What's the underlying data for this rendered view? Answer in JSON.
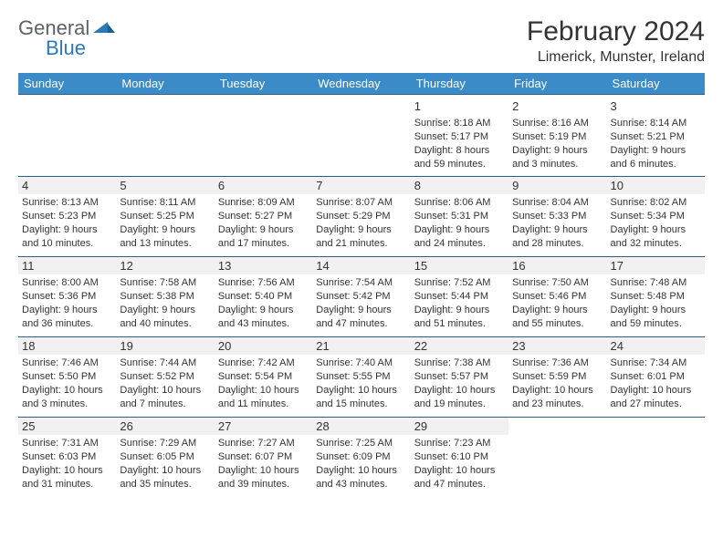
{
  "brand": {
    "part1": "General",
    "part2": "Blue"
  },
  "title": "February 2024",
  "location": "Limerick, Munster, Ireland",
  "colors": {
    "header_bar": "#3b8bc8",
    "cell_border": "#2f5d86",
    "daynum_bg": "#f1f1f1",
    "text": "#333333",
    "logo_gray": "#5b6268",
    "logo_blue": "#2a7ab8"
  },
  "dow": [
    "Sunday",
    "Monday",
    "Tuesday",
    "Wednesday",
    "Thursday",
    "Friday",
    "Saturday"
  ],
  "weeks": [
    [
      null,
      null,
      null,
      null,
      {
        "n": "1",
        "sr": "Sunrise: 8:18 AM",
        "ss": "Sunset: 5:17 PM",
        "dl1": "Daylight: 8 hours",
        "dl2": "and 59 minutes.",
        "shade": false
      },
      {
        "n": "2",
        "sr": "Sunrise: 8:16 AM",
        "ss": "Sunset: 5:19 PM",
        "dl1": "Daylight: 9 hours",
        "dl2": "and 3 minutes.",
        "shade": false
      },
      {
        "n": "3",
        "sr": "Sunrise: 8:14 AM",
        "ss": "Sunset: 5:21 PM",
        "dl1": "Daylight: 9 hours",
        "dl2": "and 6 minutes.",
        "shade": false
      }
    ],
    [
      {
        "n": "4",
        "sr": "Sunrise: 8:13 AM",
        "ss": "Sunset: 5:23 PM",
        "dl1": "Daylight: 9 hours",
        "dl2": "and 10 minutes.",
        "shade": true
      },
      {
        "n": "5",
        "sr": "Sunrise: 8:11 AM",
        "ss": "Sunset: 5:25 PM",
        "dl1": "Daylight: 9 hours",
        "dl2": "and 13 minutes.",
        "shade": true
      },
      {
        "n": "6",
        "sr": "Sunrise: 8:09 AM",
        "ss": "Sunset: 5:27 PM",
        "dl1": "Daylight: 9 hours",
        "dl2": "and 17 minutes.",
        "shade": true
      },
      {
        "n": "7",
        "sr": "Sunrise: 8:07 AM",
        "ss": "Sunset: 5:29 PM",
        "dl1": "Daylight: 9 hours",
        "dl2": "and 21 minutes.",
        "shade": true
      },
      {
        "n": "8",
        "sr": "Sunrise: 8:06 AM",
        "ss": "Sunset: 5:31 PM",
        "dl1": "Daylight: 9 hours",
        "dl2": "and 24 minutes.",
        "shade": true
      },
      {
        "n": "9",
        "sr": "Sunrise: 8:04 AM",
        "ss": "Sunset: 5:33 PM",
        "dl1": "Daylight: 9 hours",
        "dl2": "and 28 minutes.",
        "shade": true
      },
      {
        "n": "10",
        "sr": "Sunrise: 8:02 AM",
        "ss": "Sunset: 5:34 PM",
        "dl1": "Daylight: 9 hours",
        "dl2": "and 32 minutes.",
        "shade": true
      }
    ],
    [
      {
        "n": "11",
        "sr": "Sunrise: 8:00 AM",
        "ss": "Sunset: 5:36 PM",
        "dl1": "Daylight: 9 hours",
        "dl2": "and 36 minutes.",
        "shade": true
      },
      {
        "n": "12",
        "sr": "Sunrise: 7:58 AM",
        "ss": "Sunset: 5:38 PM",
        "dl1": "Daylight: 9 hours",
        "dl2": "and 40 minutes.",
        "shade": true
      },
      {
        "n": "13",
        "sr": "Sunrise: 7:56 AM",
        "ss": "Sunset: 5:40 PM",
        "dl1": "Daylight: 9 hours",
        "dl2": "and 43 minutes.",
        "shade": true
      },
      {
        "n": "14",
        "sr": "Sunrise: 7:54 AM",
        "ss": "Sunset: 5:42 PM",
        "dl1": "Daylight: 9 hours",
        "dl2": "and 47 minutes.",
        "shade": true
      },
      {
        "n": "15",
        "sr": "Sunrise: 7:52 AM",
        "ss": "Sunset: 5:44 PM",
        "dl1": "Daylight: 9 hours",
        "dl2": "and 51 minutes.",
        "shade": true
      },
      {
        "n": "16",
        "sr": "Sunrise: 7:50 AM",
        "ss": "Sunset: 5:46 PM",
        "dl1": "Daylight: 9 hours",
        "dl2": "and 55 minutes.",
        "shade": true
      },
      {
        "n": "17",
        "sr": "Sunrise: 7:48 AM",
        "ss": "Sunset: 5:48 PM",
        "dl1": "Daylight: 9 hours",
        "dl2": "and 59 minutes.",
        "shade": true
      }
    ],
    [
      {
        "n": "18",
        "sr": "Sunrise: 7:46 AM",
        "ss": "Sunset: 5:50 PM",
        "dl1": "Daylight: 10 hours",
        "dl2": "and 3 minutes.",
        "shade": true
      },
      {
        "n": "19",
        "sr": "Sunrise: 7:44 AM",
        "ss": "Sunset: 5:52 PM",
        "dl1": "Daylight: 10 hours",
        "dl2": "and 7 minutes.",
        "shade": true
      },
      {
        "n": "20",
        "sr": "Sunrise: 7:42 AM",
        "ss": "Sunset: 5:54 PM",
        "dl1": "Daylight: 10 hours",
        "dl2": "and 11 minutes.",
        "shade": true
      },
      {
        "n": "21",
        "sr": "Sunrise: 7:40 AM",
        "ss": "Sunset: 5:55 PM",
        "dl1": "Daylight: 10 hours",
        "dl2": "and 15 minutes.",
        "shade": true
      },
      {
        "n": "22",
        "sr": "Sunrise: 7:38 AM",
        "ss": "Sunset: 5:57 PM",
        "dl1": "Daylight: 10 hours",
        "dl2": "and 19 minutes.",
        "shade": true
      },
      {
        "n": "23",
        "sr": "Sunrise: 7:36 AM",
        "ss": "Sunset: 5:59 PM",
        "dl1": "Daylight: 10 hours",
        "dl2": "and 23 minutes.",
        "shade": true
      },
      {
        "n": "24",
        "sr": "Sunrise: 7:34 AM",
        "ss": "Sunset: 6:01 PM",
        "dl1": "Daylight: 10 hours",
        "dl2": "and 27 minutes.",
        "shade": true
      }
    ],
    [
      {
        "n": "25",
        "sr": "Sunrise: 7:31 AM",
        "ss": "Sunset: 6:03 PM",
        "dl1": "Daylight: 10 hours",
        "dl2": "and 31 minutes.",
        "shade": true
      },
      {
        "n": "26",
        "sr": "Sunrise: 7:29 AM",
        "ss": "Sunset: 6:05 PM",
        "dl1": "Daylight: 10 hours",
        "dl2": "and 35 minutes.",
        "shade": true
      },
      {
        "n": "27",
        "sr": "Sunrise: 7:27 AM",
        "ss": "Sunset: 6:07 PM",
        "dl1": "Daylight: 10 hours",
        "dl2": "and 39 minutes.",
        "shade": true
      },
      {
        "n": "28",
        "sr": "Sunrise: 7:25 AM",
        "ss": "Sunset: 6:09 PM",
        "dl1": "Daylight: 10 hours",
        "dl2": "and 43 minutes.",
        "shade": true
      },
      {
        "n": "29",
        "sr": "Sunrise: 7:23 AM",
        "ss": "Sunset: 6:10 PM",
        "dl1": "Daylight: 10 hours",
        "dl2": "and 47 minutes.",
        "shade": true
      },
      null,
      null
    ]
  ]
}
